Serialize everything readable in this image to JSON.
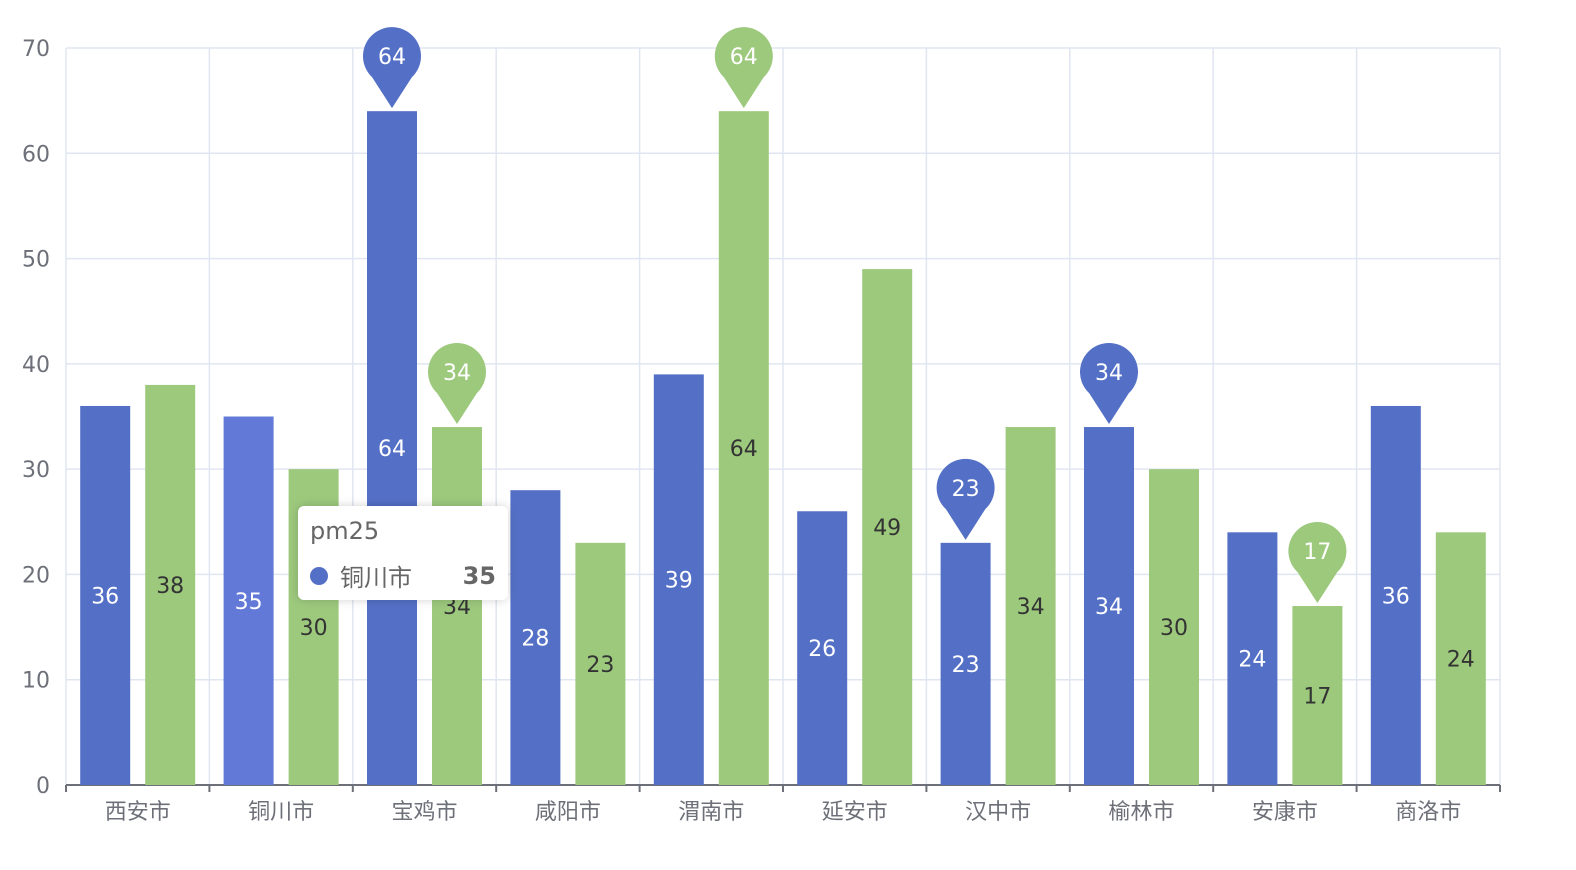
{
  "chart_data": {
    "type": "bar",
    "categories": [
      "西安市",
      "铜川市",
      "宝鸡市",
      "咸阳市",
      "渭南市",
      "延安市",
      "汉中市",
      "榆林市",
      "安康市",
      "商洛市"
    ],
    "series": [
      {
        "values": [
          36,
          35,
          64,
          28,
          39,
          26,
          23,
          34,
          24,
          36
        ],
        "color": "#5470c6",
        "highlight_color": "#6279d8",
        "label_color": "#ffffff"
      },
      {
        "values": [
          38,
          30,
          34,
          23,
          64,
          49,
          34,
          30,
          17,
          24
        ],
        "color": "#9dc97d",
        "label_color": "#333333"
      }
    ],
    "ylim": [
      0,
      70
    ],
    "yticks": [
      0,
      10,
      20,
      30,
      40,
      50,
      60,
      70
    ],
    "grid": true,
    "mark_points": [
      {
        "series": 0,
        "category": 2,
        "value": 64
      },
      {
        "series": 0,
        "category": 6,
        "value": 23
      },
      {
        "series": 0,
        "category": 7,
        "value": 34
      },
      {
        "series": 1,
        "category": 2,
        "value": 34
      },
      {
        "series": 1,
        "category": 4,
        "value": 64
      },
      {
        "series": 1,
        "category": 8,
        "value": 17
      }
    ],
    "highlighted": {
      "series": 0,
      "category": 1
    }
  },
  "tooltip": {
    "title": "pm25",
    "name": "铜川市",
    "value": "35",
    "dot_color": "#5470c6"
  }
}
